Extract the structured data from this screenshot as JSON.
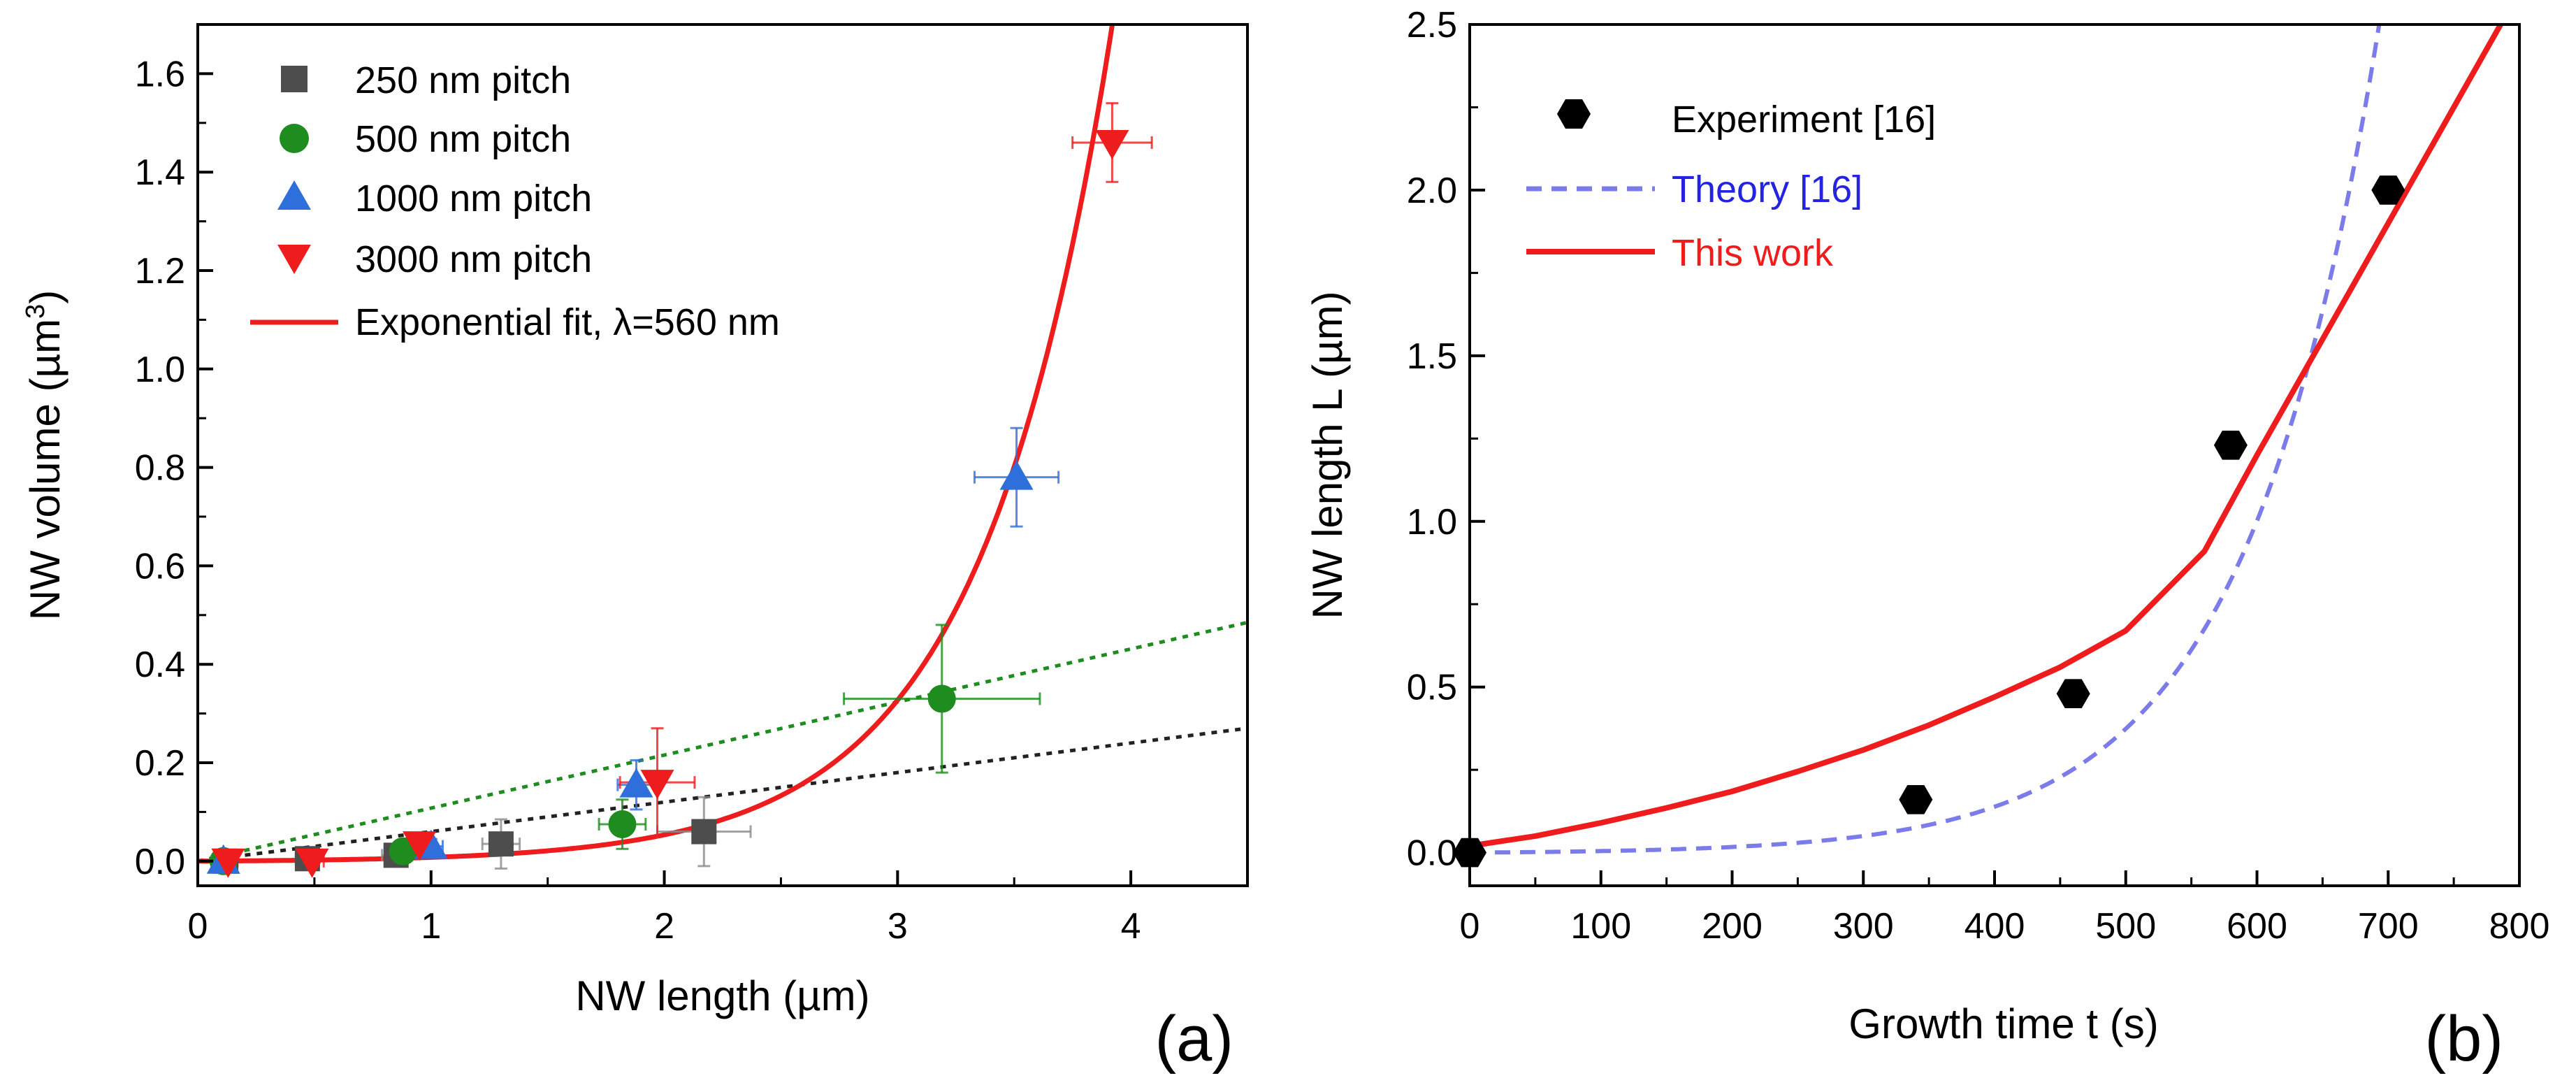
{
  "chart_data": [
    {
      "panel": "(a)",
      "type": "scatter",
      "xlabel": "NW length (µm)",
      "ylabel": "NW volume (µm³)",
      "ylabel_main": "NW volume (µm",
      "ylabel_sup": "3",
      "ylabel_close": ")",
      "xlim": [
        0,
        4.5
      ],
      "ylim": [
        -0.05,
        1.7
      ],
      "xticks": [
        0,
        1,
        2,
        3,
        4
      ],
      "yticks": [
        0.0,
        0.2,
        0.4,
        0.6,
        0.8,
        1.0,
        1.2,
        1.4,
        1.6
      ],
      "xtick_labels": [
        "0",
        "1",
        "2",
        "3",
        "4"
      ],
      "ytick_labels": [
        "0.0",
        "0.2",
        "0.4",
        "0.6",
        "0.8",
        "1.0",
        "1.2",
        "1.4",
        "1.6"
      ],
      "legend_position": "top-left",
      "series": [
        {
          "name": "250 nm pitch",
          "marker": "square",
          "color": "#4d4d4d",
          "points": [
            {
              "x": 0.12,
              "y": 0.0,
              "xerr": 0.05,
              "yerr": 0.01
            },
            {
              "x": 0.47,
              "y": 0.005,
              "xerr": 0.05,
              "yerr": 0.01
            },
            {
              "x": 0.85,
              "y": 0.012,
              "xerr": 0.06,
              "yerr": 0.015
            },
            {
              "x": 1.3,
              "y": 0.035,
              "xerr": 0.08,
              "yerr": 0.05
            },
            {
              "x": 2.17,
              "y": 0.06,
              "xerr": 0.2,
              "yerr": 0.07
            }
          ]
        },
        {
          "name": "500 nm pitch",
          "marker": "circle",
          "color": "#1e8c1e",
          "points": [
            {
              "x": 0.11,
              "y": 0.0,
              "xerr": 0.04,
              "yerr": 0.01
            },
            {
              "x": 0.88,
              "y": 0.02,
              "xerr": 0.06,
              "yerr": 0.015
            },
            {
              "x": 1.82,
              "y": 0.075,
              "xerr": 0.1,
              "yerr": 0.05
            },
            {
              "x": 3.19,
              "y": 0.33,
              "xerr": 0.42,
              "yerr": 0.15
            }
          ]
        },
        {
          "name": "1000 nm pitch",
          "marker": "triangle-up",
          "color": "#2e6fdc",
          "points": [
            {
              "x": 0.11,
              "y": 0.0,
              "xerr": 0.04,
              "yerr": 0.01
            },
            {
              "x": 1.0,
              "y": 0.03,
              "xerr": 0.05,
              "yerr": 0.015
            },
            {
              "x": 1.88,
              "y": 0.155,
              "xerr": 0.08,
              "yerr": 0.05
            },
            {
              "x": 3.51,
              "y": 0.78,
              "xerr": 0.18,
              "yerr": 0.1
            }
          ]
        },
        {
          "name": "3000 nm pitch",
          "marker": "triangle-down",
          "color": "#ee1c1c",
          "points": [
            {
              "x": 0.13,
              "y": 0.0,
              "xerr": 0.04,
              "yerr": 0.01
            },
            {
              "x": 0.49,
              "y": 0.0,
              "xerr": 0.05,
              "yerr": 0.01
            },
            {
              "x": 0.95,
              "y": 0.035,
              "xerr": 0.06,
              "yerr": 0.02
            },
            {
              "x": 1.97,
              "y": 0.16,
              "xerr": 0.16,
              "yerr": 0.11
            },
            {
              "x": 3.92,
              "y": 1.46,
              "xerr": 0.17,
              "yerr": 0.08
            }
          ]
        }
      ],
      "fit": {
        "name": "Exponential fit, λ=560 nm",
        "color": "#ee1c1c",
        "formula": "y = a*(exp(x/0.56)-1)",
        "a": 0.00155,
        "lambda_um": 0.56
      },
      "dotted_lines": [
        {
          "color": "#1e8c1e",
          "x": [
            0,
            4.5
          ],
          "y": [
            0,
            0.485
          ],
          "style": "dotted"
        },
        {
          "color": "#222222",
          "x": [
            0,
            4.5
          ],
          "y": [
            0,
            0.27
          ],
          "style": "dotted"
        }
      ]
    },
    {
      "panel": "(b)",
      "type": "line",
      "xlabel": "Growth time t (s)",
      "ylabel": "NW length L (µm)",
      "xlim": [
        0,
        800
      ],
      "ylim": [
        -0.1,
        2.5
      ],
      "xticks": [
        0,
        100,
        200,
        300,
        400,
        500,
        600,
        700,
        800
      ],
      "yticks": [
        0.0,
        0.5,
        1.0,
        1.5,
        2.0,
        2.5
      ],
      "xtick_labels": [
        "0",
        "100",
        "200",
        "300",
        "400",
        "500",
        "600",
        "700",
        "800"
      ],
      "ytick_labels": [
        "0.0",
        "0.5",
        "1.0",
        "1.5",
        "2.0",
        "2.5"
      ],
      "legend_position": "top-left",
      "experiment": {
        "name": "Experiment [16]",
        "marker": "hexagon",
        "color": "#000000",
        "points": [
          {
            "x": 0,
            "y": 0.0
          },
          {
            "x": 340,
            "y": 0.16
          },
          {
            "x": 460,
            "y": 0.48
          },
          {
            "x": 580,
            "y": 1.23
          },
          {
            "x": 700,
            "y": 2.0
          }
        ]
      },
      "theory": {
        "name": "Theory [16]",
        "color": "#7b7bea",
        "style": "dashed",
        "formula": "y = a*(exp(t/tau)-1)",
        "a": 0.0028,
        "tau_s": 102
      },
      "this_work": {
        "name": "This work",
        "color": "#ee1c1c",
        "x": [
          0,
          50,
          100,
          150,
          200,
          250,
          300,
          350,
          400,
          450,
          500,
          560,
          600,
          650,
          700,
          750,
          790
        ],
        "y": [
          0.02,
          0.05,
          0.09,
          0.135,
          0.185,
          0.245,
          0.31,
          0.385,
          0.47,
          0.56,
          0.67,
          0.91,
          1.2,
          1.55,
          1.9,
          2.25,
          2.53
        ]
      }
    }
  ]
}
